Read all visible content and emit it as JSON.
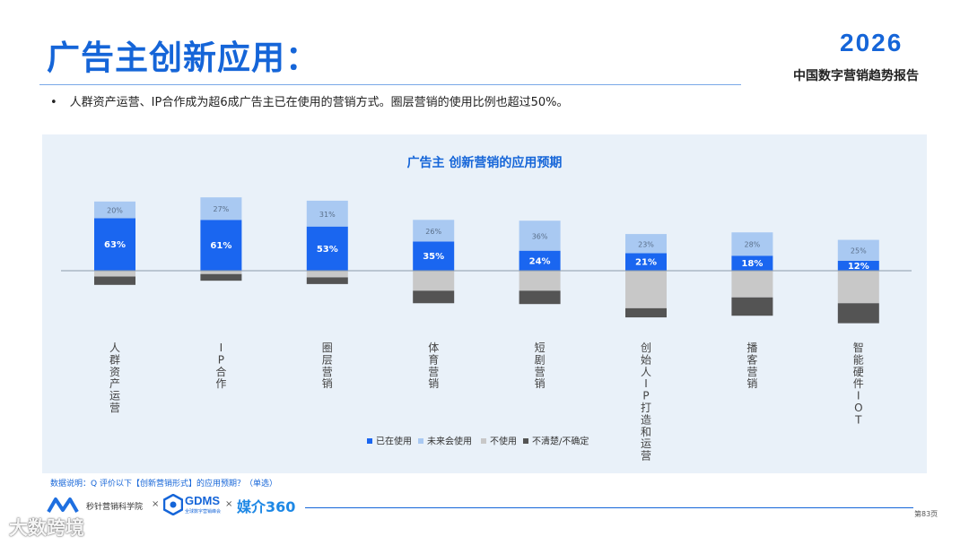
{
  "header": {
    "title": "广告主创新应用：",
    "brand_year": "2026",
    "brand_report": "中国数字营销趋势报告"
  },
  "bullet": {
    "dot": "•",
    "text": "人群资产运营、IP合作成为超6成广告主已在使用的营销方式。圈层营销的使用比例也超过50%。"
  },
  "colors": {
    "accent": "#1565d8",
    "panel_bg": "#e9f1f9",
    "in_use": "#1a66f0",
    "future": "#a9c9f2",
    "not_use": "#c8c8c8",
    "unsure": "#545454"
  },
  "chart_data": {
    "type": "bar",
    "title": "广告主 创新营销的应用预期",
    "categories": [
      "人群资产运营",
      "IP合作",
      "圈层营销",
      "体育营销",
      "短剧营销",
      "创始人IP打造和运营",
      "播客营销",
      "智能硬件IOT"
    ],
    "series": [
      {
        "name": "已在使用",
        "values": [
          63,
          61,
          53,
          35,
          24,
          21,
          18,
          12
        ],
        "direction": "up"
      },
      {
        "name": "未来会使用",
        "values": [
          20,
          27,
          31,
          26,
          36,
          23,
          28,
          25
        ],
        "direction": "up"
      },
      {
        "name": "不使用",
        "values": [
          7,
          4,
          8,
          24,
          24,
          45,
          32,
          39
        ],
        "direction": "down"
      },
      {
        "name": "不清楚/不确定",
        "values": [
          10,
          8,
          8,
          15,
          16,
          11,
          22,
          24
        ],
        "direction": "down"
      }
    ],
    "data_labels": {
      "已在使用": [
        "63%",
        "61%",
        "53%",
        "35%",
        "24%",
        "21%",
        "18%",
        "12%"
      ],
      "未来会使用": [
        "20%",
        "27%",
        "31%",
        "26%",
        "36%",
        "23%",
        "28%",
        "25%"
      ]
    },
    "legend_position": "bottom",
    "grid": false
  },
  "note": "数据说明：Q 评价以下【创新营销形式】的应用预期？（单选）",
  "footer": {
    "logo1": "秒针营销科学院",
    "times": "×",
    "gdms": "GDMS",
    "gdms_sub": "全球数字营销峰会",
    "meijie": "媒介360",
    "page": "第83页"
  },
  "watermark": "大数跨境"
}
